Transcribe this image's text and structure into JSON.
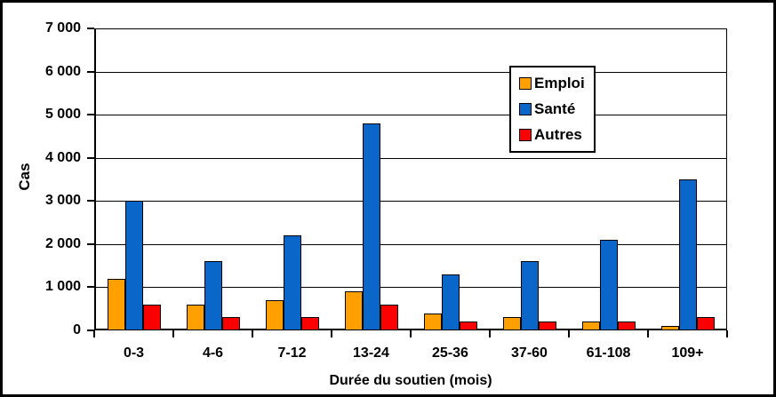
{
  "chart_data": {
    "type": "bar",
    "title": "",
    "xlabel": "Durée du soutien (mois)",
    "ylabel": "Cas",
    "categories": [
      "0-3",
      "4-6",
      "7-12",
      "13-24",
      "25-36",
      "37-60",
      "61-108",
      "109+"
    ],
    "series": [
      {
        "name": "Emploi",
        "color": "#FFA000",
        "values": [
          1200,
          600,
          700,
          900,
          400,
          300,
          200,
          100
        ]
      },
      {
        "name": "Santé",
        "color": "#0A66C8",
        "values": [
          3000,
          1600,
          2200,
          4800,
          1300,
          1600,
          2100,
          3500
        ]
      },
      {
        "name": "Autres",
        "color": "#FB0000",
        "values": [
          600,
          300,
          300,
          600,
          200,
          200,
          200,
          300
        ]
      }
    ],
    "ylim": [
      0,
      7000
    ],
    "ytick_step": 1000,
    "ytick_labels": [
      "0",
      "1 000",
      "2 000",
      "3 000",
      "4 000",
      "5 000",
      "6 000",
      "7 000"
    ],
    "grid": "horizontal",
    "legend_position": "inside-top-right",
    "plot_border_color": "#000000",
    "background_color": "#FFFFFF"
  }
}
